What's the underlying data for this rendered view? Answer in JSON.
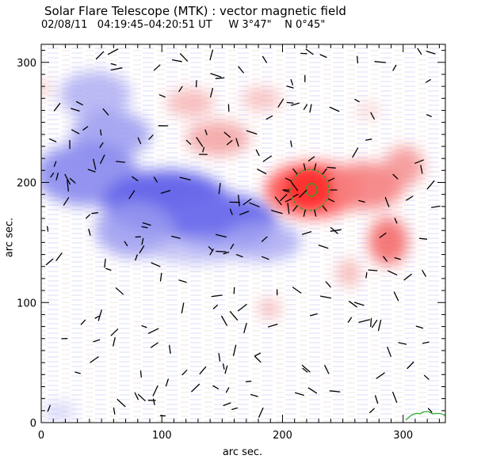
{
  "header": {
    "title": "Solar Flare Telescope (MTK) : vector magnetic field",
    "date": "02/08/11",
    "time_range": "04:19:45–04:20:51 UT",
    "lon": "W 3°47\"",
    "lat": "N 0°45\""
  },
  "chart_data": {
    "type": "heatmap",
    "title": "Solar Flare Telescope (MTK) : vector magnetic field",
    "xlabel": "arc sec.",
    "ylabel": "arc sec.",
    "xlim": [
      0,
      335
    ],
    "ylim": [
      0,
      315
    ],
    "x_ticks": [
      0,
      100,
      200,
      300
    ],
    "y_ticks": [
      0,
      100,
      200,
      300
    ],
    "colors": {
      "positive": "#ff5555",
      "negative": "#5555ff",
      "contour": "#22aa22",
      "vector": "#000000"
    },
    "grid": false
  }
}
